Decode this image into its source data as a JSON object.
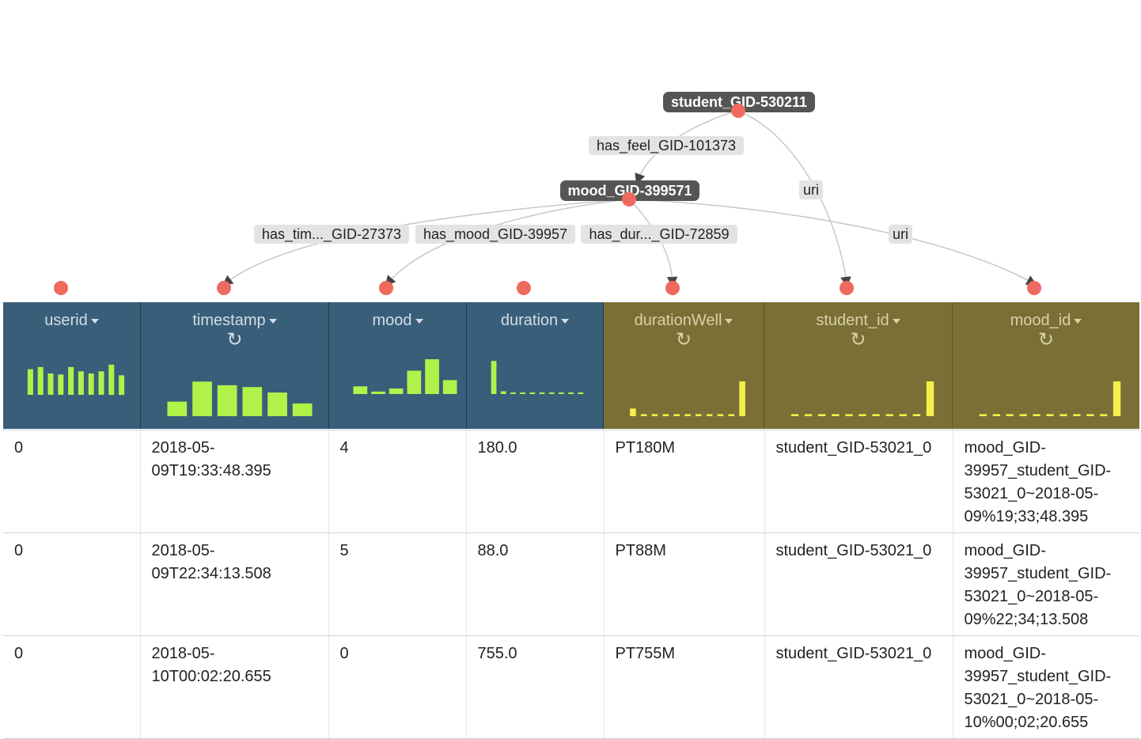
{
  "graph": {
    "nodes": [
      {
        "id": "student",
        "label": "student_GID-530211"
      },
      {
        "id": "mood",
        "label": "mood_GID-399571"
      }
    ],
    "edges": [
      {
        "id": "has_feel",
        "label": "has_feel_GID-101373"
      },
      {
        "id": "uri_student",
        "label": "uri"
      },
      {
        "id": "has_time",
        "label": "has_tim..._GID-27373"
      },
      {
        "id": "has_mood",
        "label": "has_mood_GID-39957"
      },
      {
        "id": "has_dur",
        "label": "has_dur..._GID-72859"
      },
      {
        "id": "uri_mood",
        "label": "uri"
      }
    ]
  },
  "columns": [
    {
      "name": "userid",
      "refresh": false,
      "group": "source",
      "bars": [
        0.72,
        0.78,
        0.6,
        0.57,
        0.78,
        0.66,
        0.6,
        0.66,
        0.85,
        0.55
      ]
    },
    {
      "name": "timestamp",
      "refresh": true,
      "group": "source",
      "bars": [
        0.4,
        0.95,
        0.85,
        0.8,
        0.65,
        0.35
      ]
    },
    {
      "name": "mood",
      "refresh": false,
      "group": "source",
      "bars": [
        0.22,
        0.07,
        0.16,
        0.67,
        1.0,
        0.4
      ]
    },
    {
      "name": "duration",
      "refresh": false,
      "group": "source",
      "bars": [
        0.95,
        0.08,
        0.04,
        0.04,
        0.04,
        0.04,
        0.04,
        0.04,
        0.04,
        0.04
      ]
    },
    {
      "name": "durationWell",
      "refresh": true,
      "group": "derived",
      "bars": [
        0.22,
        0.06,
        0.06,
        0.06,
        0.06,
        0.06,
        0.06,
        0.06,
        0.06,
        0.06,
        1.0
      ]
    },
    {
      "name": "student_id",
      "refresh": true,
      "group": "derived",
      "bars": [
        0.06,
        0.06,
        0.06,
        0.06,
        0.06,
        0.06,
        0.06,
        0.06,
        0.06,
        0.06,
        1.0
      ]
    },
    {
      "name": "mood_id",
      "refresh": true,
      "group": "derived",
      "bars": [
        0.06,
        0.06,
        0.06,
        0.06,
        0.06,
        0.06,
        0.06,
        0.06,
        0.06,
        0.06,
        1.0
      ]
    }
  ],
  "rows": [
    [
      "0",
      "2018-05-09T19:33:48.395",
      "4",
      "180.0",
      "PT180M",
      "student_GID-53021_0",
      "mood_GID-39957_student_GID-53021_0~2018-05-09%19;33;48.395"
    ],
    [
      "0",
      "2018-05-09T22:34:13.508",
      "5",
      "88.0",
      "PT88M",
      "student_GID-53021_0",
      "mood_GID-39957_student_GID-53021_0~2018-05-09%22;34;13.508"
    ],
    [
      "0",
      "2018-05-10T00:02:20.655",
      "0",
      "755.0",
      "PT755M",
      "student_GID-53021_0",
      "mood_GID-39957_student_GID-53021_0~2018-05-10%00;02;20.655"
    ]
  ],
  "icons": {
    "dropdown": "caret-down-icon",
    "refresh": "refresh-icon"
  },
  "colors": {
    "source_header": "#395e79",
    "derived_header": "#7a6f35",
    "source_bars": "#b1f24a",
    "derived_bars": "#f4f04a",
    "anchor": "#ef6a5e",
    "node": "#555555",
    "edge_label_bg": "#e3e3e3"
  }
}
